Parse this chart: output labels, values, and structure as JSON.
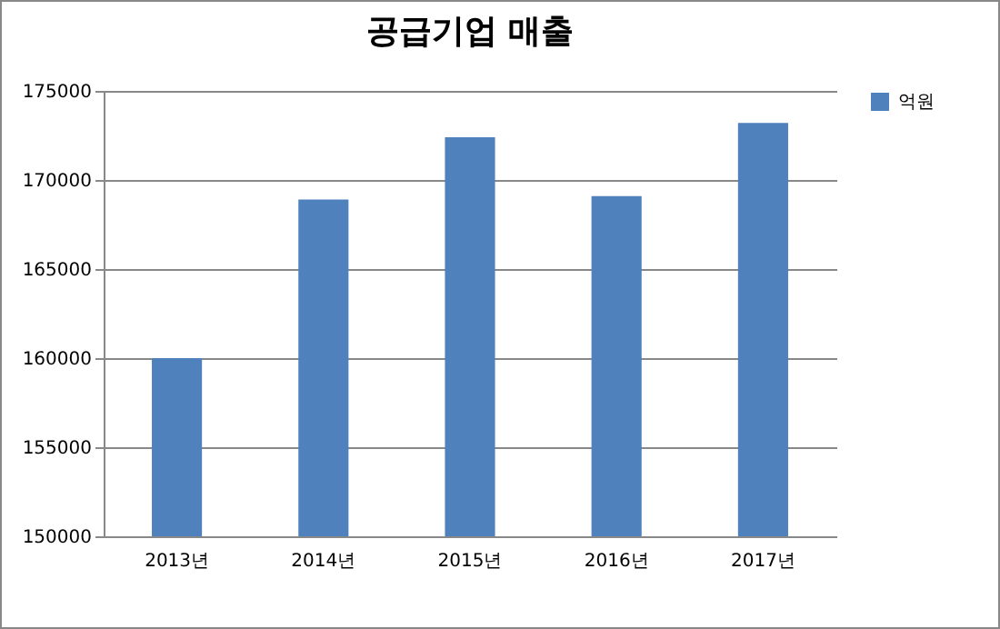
{
  "chart_data": {
    "type": "bar",
    "title": "공급기업 매출",
    "categories": [
      "2013년",
      "2014년",
      "2015년",
      "2016년",
      "2017년"
    ],
    "series": [
      {
        "name": "억원",
        "color": "#4f81bd",
        "values": [
          160000,
          168900,
          172400,
          169100,
          173200
        ]
      }
    ],
    "ylim": [
      150000,
      175000
    ],
    "yticks": [
      150000,
      155000,
      160000,
      165000,
      170000,
      175000
    ],
    "grid": "y",
    "legend": "right"
  }
}
